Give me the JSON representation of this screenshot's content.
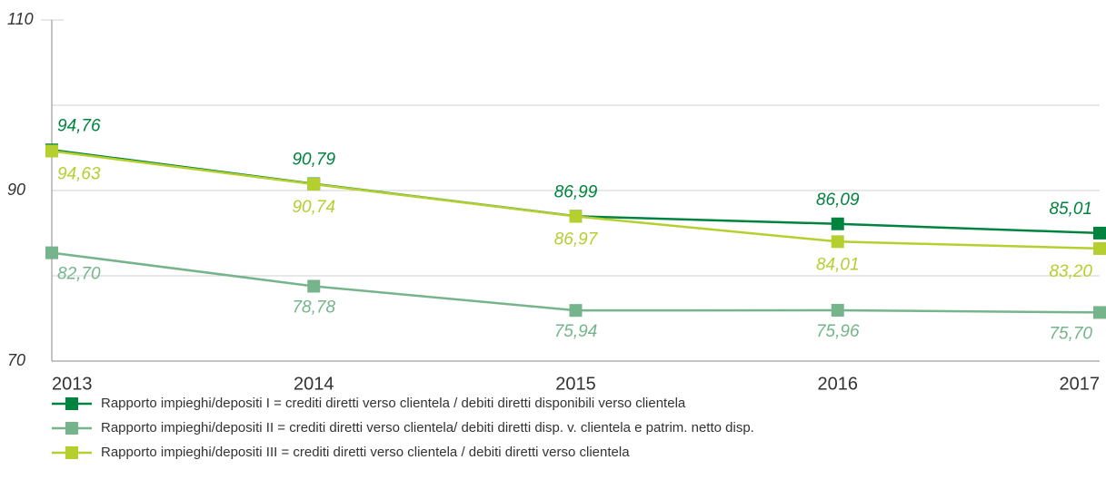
{
  "chart_data": {
    "type": "line",
    "categories": [
      "2013",
      "2014",
      "2015",
      "2016",
      "2017"
    ],
    "series": [
      {
        "name": "Rapporto impieghi/depositi I = crediti diretti verso clientela / debiti diretti disponibili verso clientela",
        "color": "#00833e",
        "values": [
          94.76,
          90.79,
          86.99,
          86.09,
          85.01
        ],
        "value_labels": [
          "94,76",
          "90,79",
          "86,99",
          "86,09",
          "85,01"
        ]
      },
      {
        "name": "Rapporto impieghi/depositi II = crediti diretti verso clientela/ debiti diretti disp. v. clientela e patrim. netto disp.",
        "color": "#76b58c",
        "values": [
          82.7,
          78.78,
          75.94,
          75.96,
          75.7
        ],
        "value_labels": [
          "82,70",
          "78,78",
          "75,94",
          "75,96",
          "75,70"
        ]
      },
      {
        "name": "Rapporto impieghi/depositi III = crediti diretti verso clientela / debiti diretti verso clientela",
        "color": "#b5cf2f",
        "values": [
          94.63,
          90.74,
          86.97,
          84.01,
          83.2
        ],
        "value_labels": [
          "94,63",
          "90,74",
          "86,97",
          "84,01",
          "83,20"
        ]
      }
    ],
    "ylim": [
      70,
      110
    ],
    "yticks": [
      70,
      90,
      110
    ],
    "minor_yticks": [
      80,
      100
    ],
    "grid": true
  }
}
